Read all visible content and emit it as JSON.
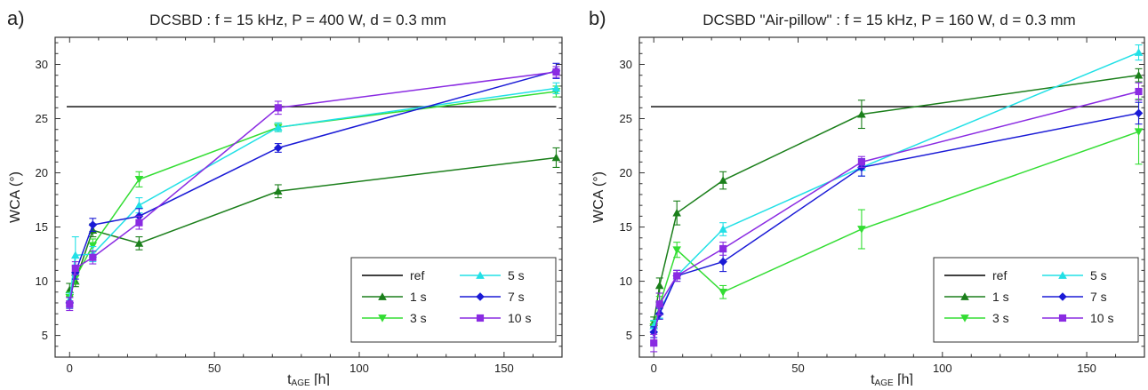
{
  "figure": {
    "background": "#ffffff"
  },
  "chart_data": [
    {
      "type": "line",
      "panel_label": "a)",
      "title": "DCSBD : f = 15 kHz, P = 400 W, d = 0.3 mm",
      "xlabel_main": "t",
      "xlabel_sub": "AGE",
      "xlabel_unit": " [h]",
      "ylabel": "WCA  (°)",
      "xlim": [
        -5,
        170
      ],
      "ylim": [
        3,
        32.5
      ],
      "xticks": [
        0,
        50,
        100,
        150
      ],
      "yticks": [
        5,
        10,
        15,
        20,
        25,
        30
      ],
      "grid": false,
      "legend_position": "bottom-right",
      "reference": {
        "name": "ref",
        "value": 26.1,
        "x": [
          -1,
          168
        ],
        "color": "#000000"
      },
      "series": [
        {
          "name": "1 s",
          "marker": "triangle-up",
          "color": "#1b7f1b",
          "x": [
            0,
            2,
            8,
            24,
            72,
            168
          ],
          "y": [
            9.2,
            10.0,
            14.7,
            13.5,
            18.3,
            21.4
          ],
          "err": [
            0.6,
            0.5,
            0.6,
            0.6,
            0.6,
            0.9
          ]
        },
        {
          "name": "3 s",
          "marker": "triangle-down",
          "color": "#33dd33",
          "x": [
            0,
            2,
            8,
            24,
            72,
            168
          ],
          "y": [
            8.5,
            10.3,
            13.3,
            19.4,
            24.2,
            27.5
          ],
          "err": [
            0.5,
            0.5,
            0.6,
            0.7,
            0.4,
            0.5
          ]
        },
        {
          "name": "5 s",
          "marker": "triangle-up",
          "color": "#22e0e6",
          "x": [
            0,
            2,
            8,
            24,
            72,
            168
          ],
          "y": [
            8.3,
            12.4,
            12.5,
            17.0,
            24.2,
            27.8
          ],
          "err": [
            0.6,
            1.7,
            0.7,
            0.7,
            0.4,
            0.5
          ]
        },
        {
          "name": "7 s",
          "marker": "diamond",
          "color": "#1a1ad6",
          "x": [
            0,
            2,
            8,
            24,
            72,
            168
          ],
          "y": [
            8.0,
            10.8,
            15.2,
            16.0,
            22.3,
            29.4
          ],
          "err": [
            0.5,
            0.6,
            0.6,
            0.7,
            0.4,
            0.7
          ]
        },
        {
          "name": "10 s",
          "marker": "square",
          "color": "#8a2be2",
          "x": [
            0,
            2,
            8,
            24,
            72,
            168
          ],
          "y": [
            7.9,
            11.2,
            12.2,
            15.4,
            26.0,
            29.3
          ],
          "err": [
            0.6,
            0.6,
            0.6,
            0.6,
            0.6,
            0.5
          ]
        }
      ]
    },
    {
      "type": "line",
      "panel_label": "b)",
      "title": "DCSBD \"Air-pillow\" : f = 15 kHz, P = 160 W, d = 0.3 mm",
      "xlabel_main": "t",
      "xlabel_sub": "AGE",
      "xlabel_unit": " [h]",
      "ylabel": "WCA  (°)",
      "xlim": [
        -5,
        170
      ],
      "ylim": [
        3,
        32.5
      ],
      "xticks": [
        0,
        50,
        100,
        150
      ],
      "yticks": [
        5,
        10,
        15,
        20,
        25,
        30
      ],
      "grid": false,
      "legend_position": "bottom-right",
      "reference": {
        "name": "ref",
        "value": 26.1,
        "x": [
          -1,
          168
        ],
        "color": "#000000"
      },
      "series": [
        {
          "name": "1 s",
          "marker": "triangle-up",
          "color": "#1b7f1b",
          "x": [
            0,
            2,
            8,
            24,
            72,
            168
          ],
          "y": [
            6.2,
            9.6,
            16.3,
            19.3,
            25.4,
            29.0
          ],
          "err": [
            0.5,
            0.7,
            1.1,
            0.8,
            1.3,
            0.6
          ]
        },
        {
          "name": "3 s",
          "marker": "triangle-down",
          "color": "#33dd33",
          "x": [
            0,
            2,
            8,
            24,
            72,
            168
          ],
          "y": [
            5.8,
            7.8,
            12.9,
            9.0,
            14.8,
            23.8
          ],
          "err": [
            0.5,
            0.8,
            0.7,
            0.6,
            1.8,
            3.0
          ]
        },
        {
          "name": "5 s",
          "marker": "triangle-up",
          "color": "#22e0e6",
          "x": [
            0,
            2,
            8,
            24,
            72,
            168
          ],
          "y": [
            5.9,
            7.2,
            10.5,
            14.8,
            20.5,
            31.1
          ],
          "err": [
            0.5,
            0.6,
            0.5,
            0.6,
            0.8,
            0.7
          ]
        },
        {
          "name": "7 s",
          "marker": "diamond",
          "color": "#1a1ad6",
          "x": [
            0,
            2,
            8,
            24,
            72,
            168
          ],
          "y": [
            5.3,
            7.0,
            10.5,
            11.8,
            20.5,
            25.5
          ],
          "err": [
            0.5,
            0.5,
            0.5,
            0.9,
            0.8,
            1.0
          ]
        },
        {
          "name": "10 s",
          "marker": "square",
          "color": "#8a2be2",
          "x": [
            0,
            2,
            8,
            24,
            72,
            168
          ],
          "y": [
            4.3,
            7.9,
            10.5,
            13.0,
            21.0,
            27.5
          ],
          "err": [
            0.8,
            1.0,
            0.5,
            0.6,
            0.5,
            0.8
          ]
        }
      ]
    }
  ]
}
